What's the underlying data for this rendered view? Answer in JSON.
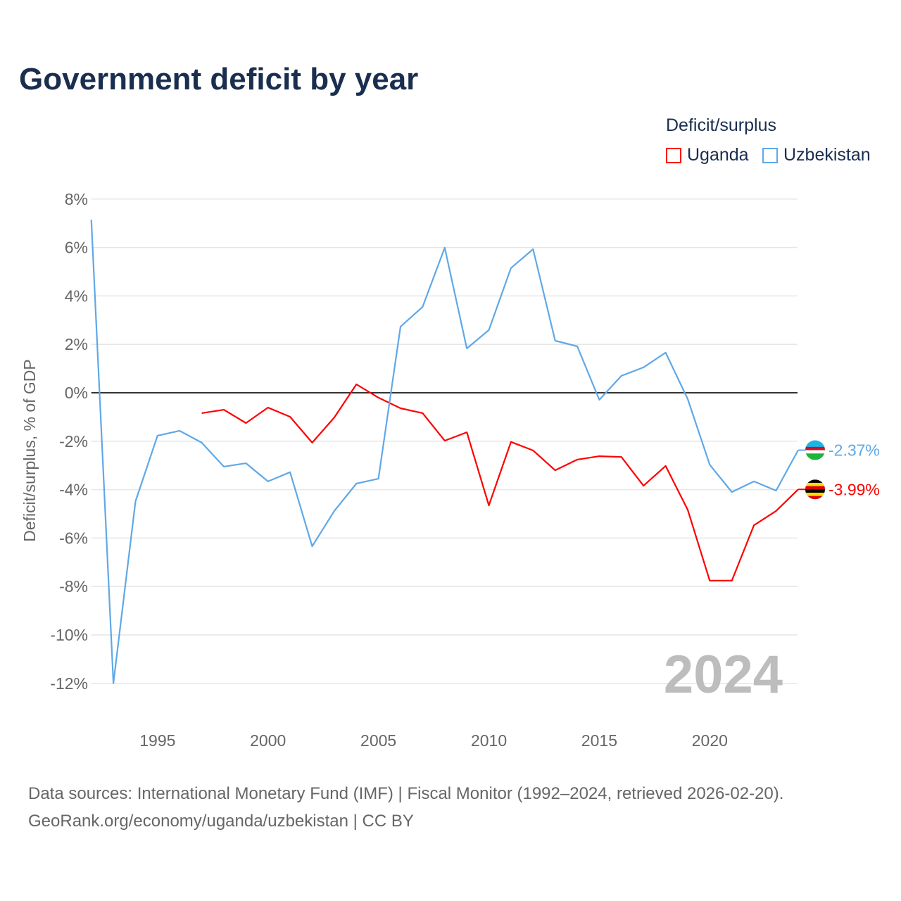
{
  "chart_data": {
    "type": "line",
    "title": "Government deficit by year",
    "ylabel": "Deficit/surplus, % of GDP",
    "xlabel": "",
    "ylim": [
      -12,
      8
    ],
    "xlim": [
      1992,
      2024
    ],
    "yticks": [
      8,
      6,
      4,
      2,
      0,
      -2,
      -4,
      -6,
      -8,
      -10,
      -12
    ],
    "ytick_labels": [
      "8%",
      "6%",
      "4%",
      "2%",
      "0%",
      "-2%",
      "-4%",
      "-6%",
      "-8%",
      "-10%",
      "-12%"
    ],
    "xticks": [
      1995,
      2000,
      2005,
      2010,
      2015,
      2020
    ],
    "xtick_labels": [
      "1995",
      "2000",
      "2005",
      "2010",
      "2015",
      "2020"
    ],
    "grid": true,
    "legend_title": "Deficit/surplus",
    "legend_position": "top-right",
    "year_watermark": "2024",
    "series": [
      {
        "name": "Uganda",
        "color": "#ff0000",
        "end_label": "-3.99%",
        "x": [
          1997,
          1998,
          1999,
          2000,
          2001,
          2002,
          2003,
          2004,
          2005,
          2006,
          2007,
          2008,
          2009,
          2010,
          2011,
          2012,
          2013,
          2014,
          2015,
          2016,
          2017,
          2018,
          2019,
          2020,
          2021,
          2022,
          2023,
          2024
        ],
        "values": [
          -0.84,
          -0.7,
          -1.25,
          -0.61,
          -0.99,
          -2.06,
          -1.02,
          0.35,
          -0.2,
          -0.64,
          -0.84,
          -1.98,
          -1.63,
          -4.65,
          -2.03,
          -2.38,
          -3.2,
          -2.76,
          -2.62,
          -2.65,
          -3.84,
          -3.02,
          -4.83,
          -7.76,
          -7.76,
          -5.47,
          -4.88,
          -3.99
        ]
      },
      {
        "name": "Uzbekistan",
        "color": "#5fa8e8",
        "end_label": "-2.37%",
        "x": [
          1992,
          1993,
          1994,
          1995,
          1996,
          1997,
          1998,
          1999,
          2000,
          2001,
          2002,
          2003,
          2004,
          2005,
          2006,
          2007,
          2008,
          2009,
          2010,
          2011,
          2012,
          2013,
          2014,
          2015,
          2016,
          2017,
          2018,
          2019,
          2020,
          2021,
          2022,
          2023,
          2024
        ],
        "values": [
          7.15,
          -12.0,
          -4.48,
          -1.77,
          -1.57,
          -2.06,
          -3.05,
          -2.91,
          -3.66,
          -3.28,
          -6.34,
          -4.88,
          -3.75,
          -3.55,
          2.73,
          3.55,
          5.99,
          1.83,
          2.59,
          5.15,
          5.93,
          2.15,
          1.92,
          -0.29,
          0.7,
          1.05,
          1.66,
          -0.26,
          -2.97,
          -4.1,
          -3.66,
          -4.04,
          -2.37
        ]
      }
    ]
  },
  "footer": {
    "line1": "Data sources: International Monetary Fund (IMF) | Fiscal Monitor (1992–2024, retrieved 2026-02-20).",
    "line2": "GeoRank.org/economy/uganda/uzbekistan | CC BY"
  }
}
